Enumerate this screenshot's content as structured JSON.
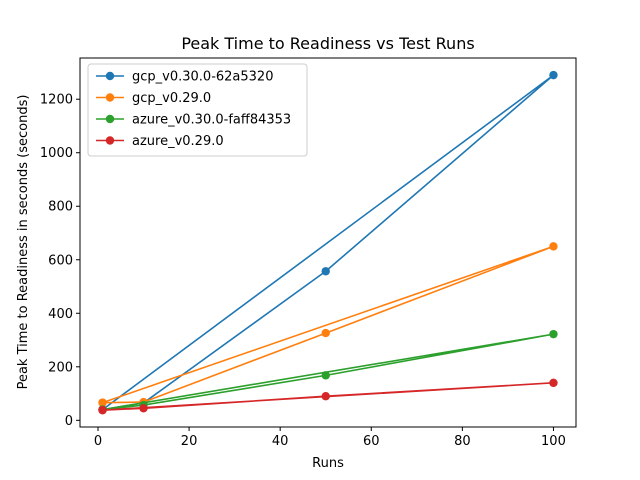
{
  "chart_data": {
    "type": "line",
    "title": "Peak Time to Readiness vs Test Runs",
    "xlabel": "Runs",
    "ylabel": "Peak Time to Readiness in seconds (seconds)",
    "xlim": [
      -3.95,
      104.95
    ],
    "ylim": [
      -25,
      1354
    ],
    "xticks": [
      0,
      20,
      40,
      60,
      80,
      100
    ],
    "yticks": [
      0,
      200,
      400,
      600,
      800,
      1000,
      1200
    ],
    "grid": false,
    "legend_position": "upper-left",
    "series": [
      {
        "name": "gcp_v0.30.0-62a5320",
        "color": "#1f77b4",
        "x": [
          1,
          10,
          50,
          100,
          1
        ],
        "y": [
          40,
          65,
          557,
          1290,
          40
        ]
      },
      {
        "name": "gcp_v0.29.0",
        "color": "#ff7f0e",
        "x": [
          1,
          10,
          50,
          100,
          1
        ],
        "y": [
          66,
          68,
          326,
          650,
          66
        ]
      },
      {
        "name": "azure_v0.30.0-faff84353",
        "color": "#2ca02c",
        "x": [
          1,
          10,
          50,
          100,
          1
        ],
        "y": [
          40,
          57,
          168,
          322,
          40
        ]
      },
      {
        "name": "azure_v0.29.0",
        "color": "#d62728",
        "x": [
          1,
          10,
          50,
          100,
          1
        ],
        "y": [
          38,
          45,
          90,
          140,
          38
        ]
      }
    ]
  }
}
